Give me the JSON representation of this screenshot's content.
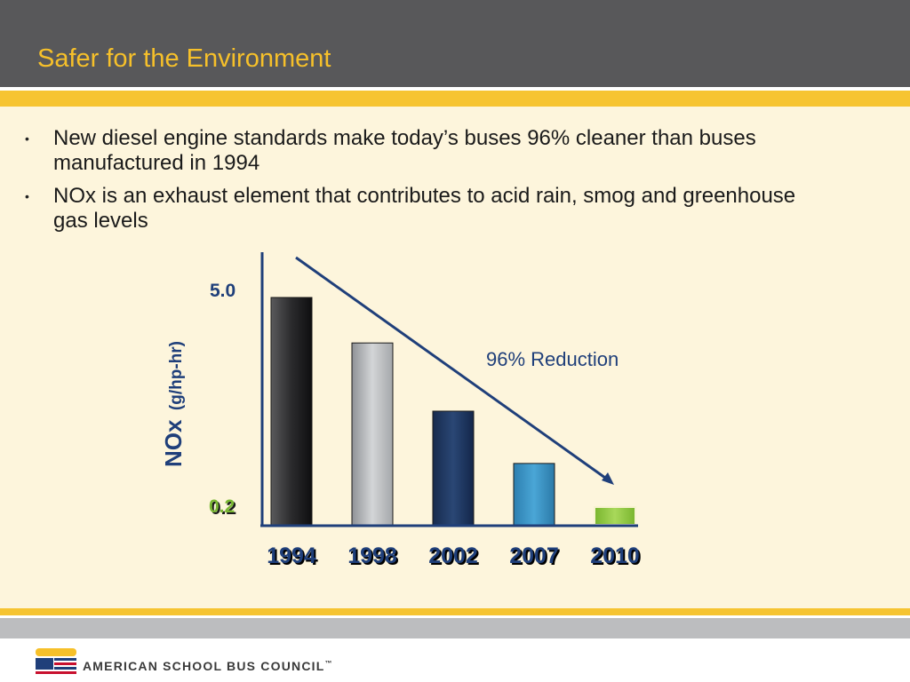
{
  "slide": {
    "title": "Safer for the Environment",
    "bullets": [
      "New diesel engine standards make today’s buses 96% cleaner than buses manufactured in 1994",
      "NOx is an exhaust element that contributes to acid rain, smog and greenhouse gas levels"
    ],
    "bullet_marker": "•"
  },
  "footer": {
    "logo_text": "AMERICAN SCHOOL BUS COUNCIL",
    "trademark": "™"
  },
  "chart_data": {
    "type": "bar",
    "categories": [
      "1994",
      "1998",
      "2002",
      "2007",
      "2010"
    ],
    "values": [
      5.0,
      4.0,
      2.5,
      1.35,
      0.2
    ],
    "ylabel_main": "NOx",
    "ylabel_unit": "(g/hp-hr)",
    "y_tick_labels": [
      "5.0",
      "0.2"
    ],
    "y_tick_values": [
      5.0,
      0.2
    ],
    "ylim": [
      0,
      5.6
    ],
    "annotation": "96% Reduction",
    "bar_colors": [
      "#2d2d2f",
      "#b4b7ba",
      "#213a62",
      "#3d98c8",
      "#8cc63f"
    ]
  },
  "colors": {
    "header": "#58585a",
    "title": "#f6c02a",
    "accent_stripe": "#f6c431",
    "content_bg": "#fdf5dc",
    "axis_text_blue": "#1f3f7a",
    "label_green": "#5a8f1c"
  }
}
